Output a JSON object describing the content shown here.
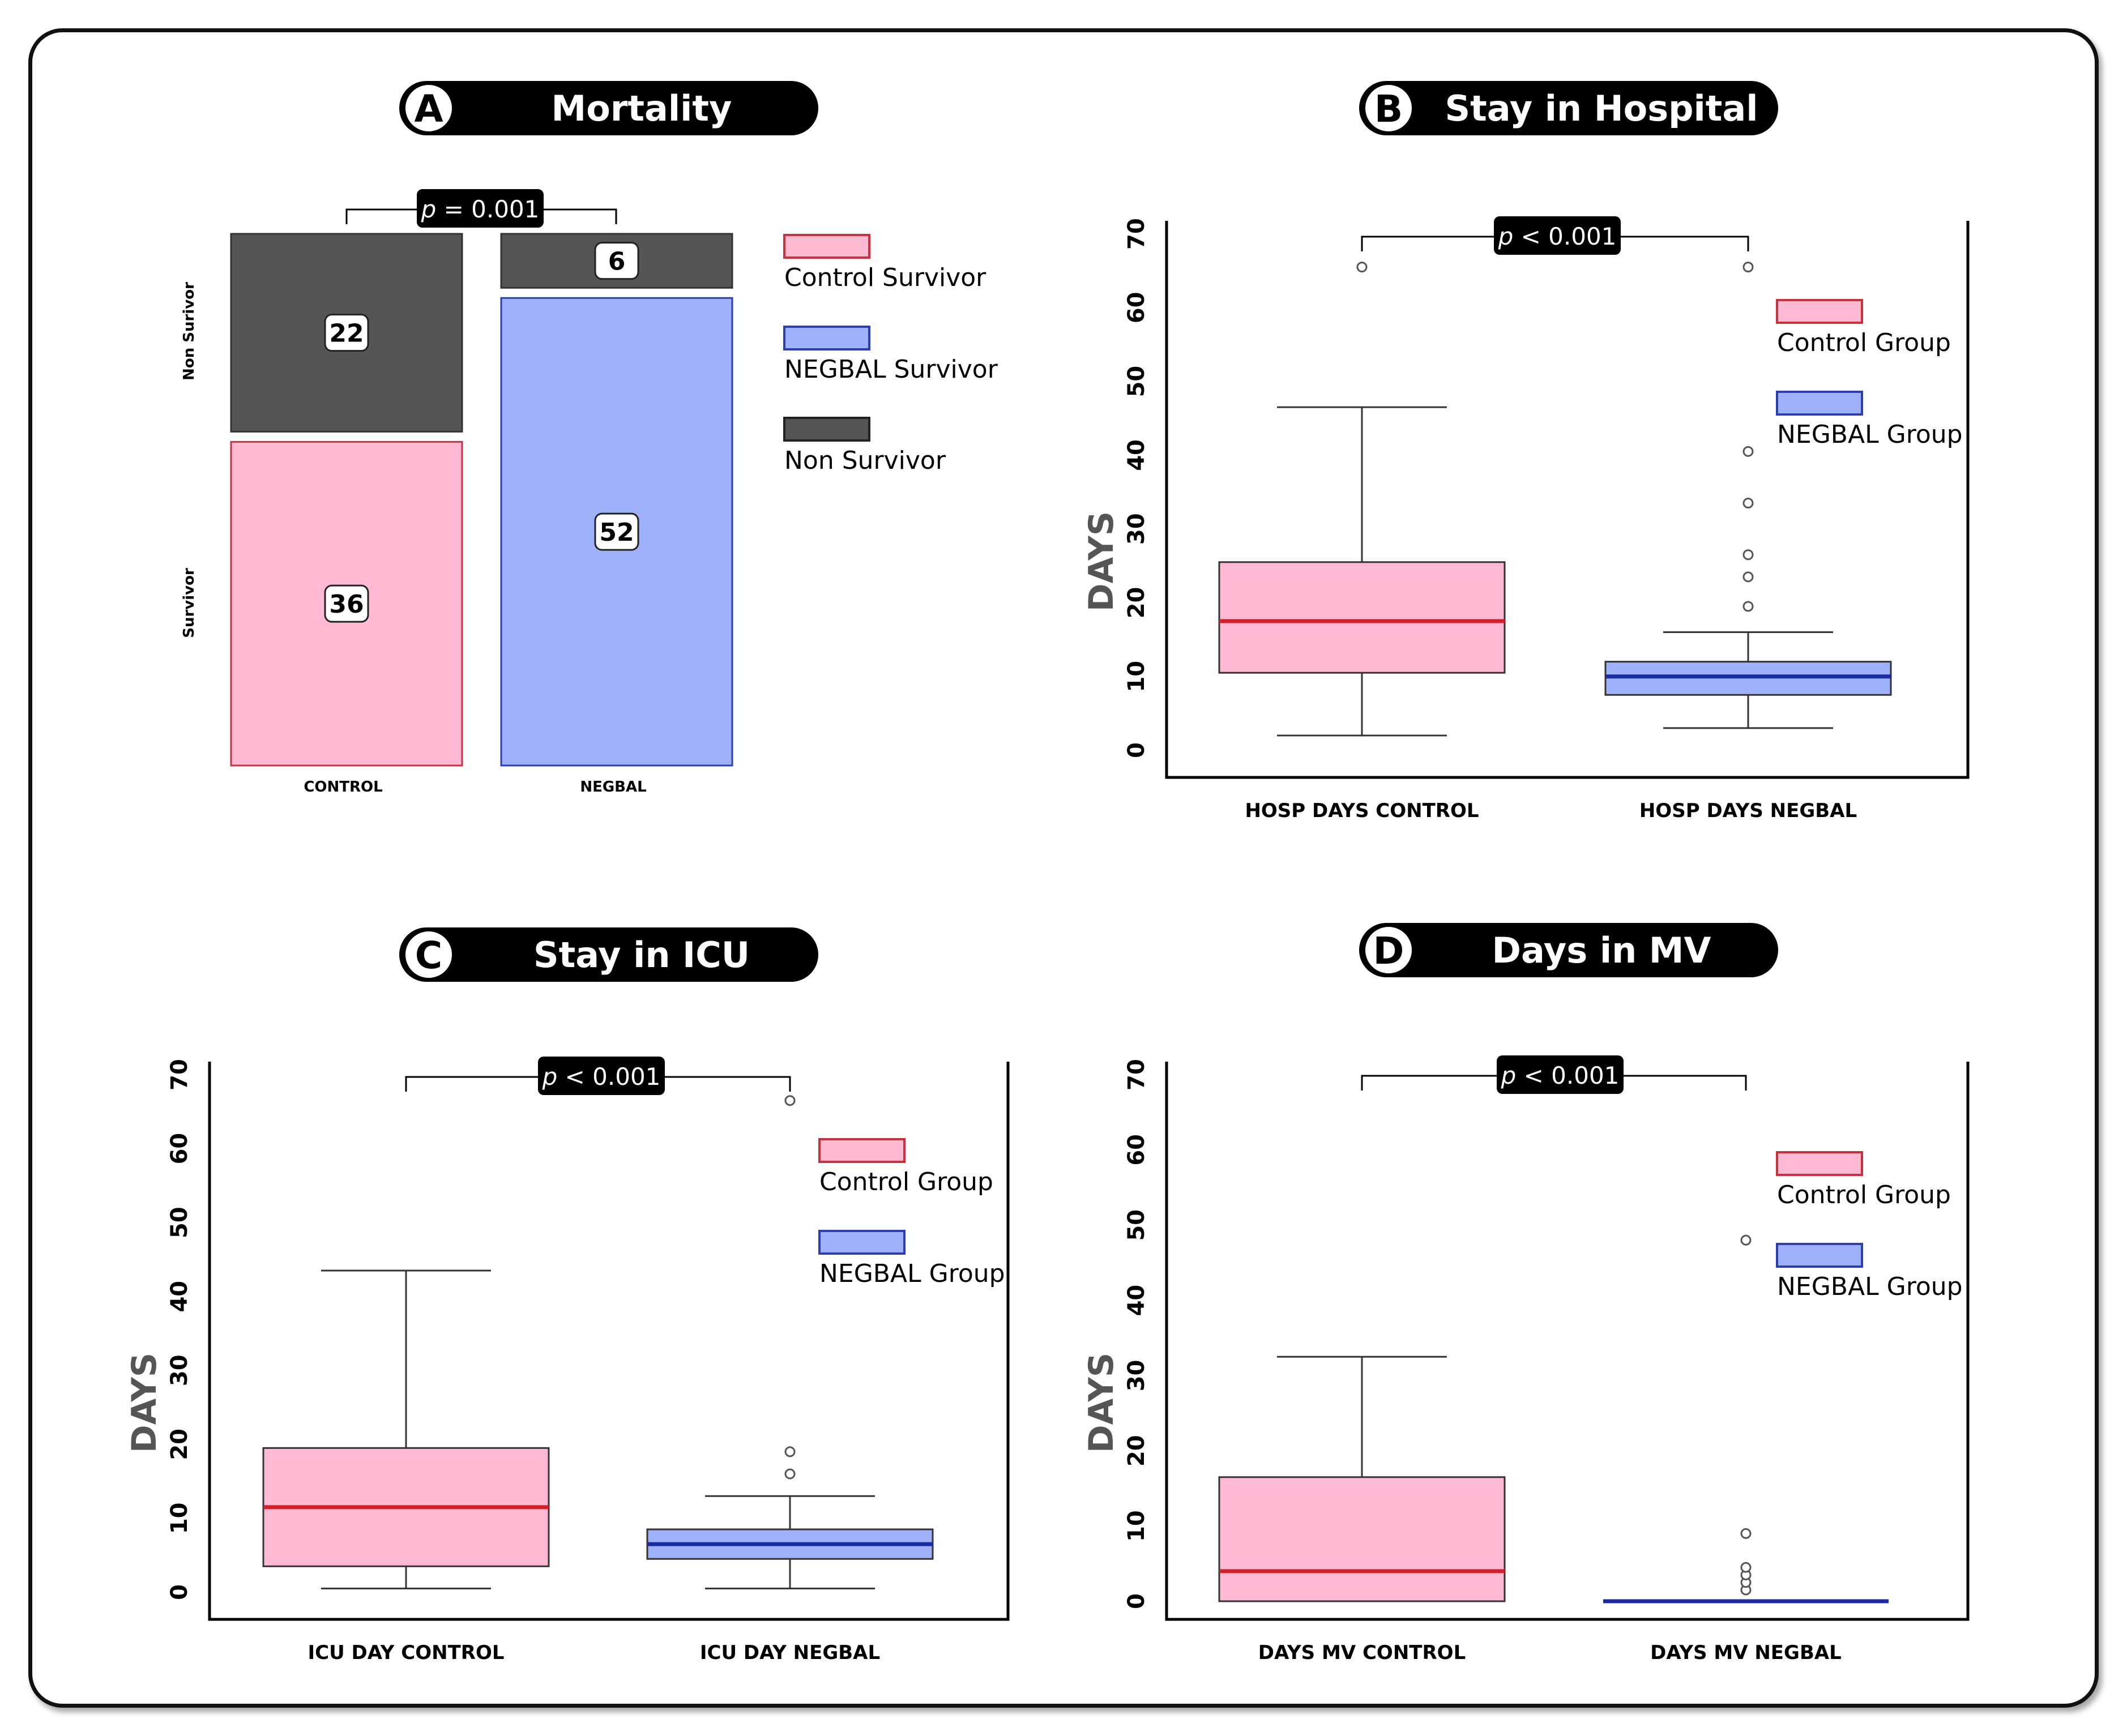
{
  "colors": {
    "control_fill": "#ffb9d3",
    "control_stroke": "#c8323c",
    "negbal_fill": "#9fb1fb",
    "negbal_stroke": "#2c3fb0",
    "nonsurv_fill": "#555555",
    "median_control": "#d0202a",
    "median_negbal": "#1a2da0",
    "dark": "#000000"
  },
  "chart_data": [
    {
      "panel": "A",
      "type": "bar",
      "subtype": "mosaic",
      "title": "Mortality",
      "categories": [
        "CONTROL",
        "NEGBAL"
      ],
      "ylabels": [
        "Non Surivor",
        "Survivor"
      ],
      "series": [
        {
          "name": "Non Survivor",
          "values": [
            22,
            6
          ]
        },
        {
          "name": "Survivor",
          "values": [
            36,
            52
          ]
        }
      ],
      "legend": [
        "Control Survivor",
        "NEGBAL Survivor",
        "Non Survivor"
      ],
      "p_text": "= 0.001"
    },
    {
      "panel": "B",
      "type": "box",
      "title": "Stay in Hospital",
      "ylabel": "DAYS",
      "ylim": [
        0,
        70
      ],
      "yticks": [
        "0",
        "10",
        "20",
        "30",
        "40",
        "50",
        "60",
        "70"
      ],
      "categories": [
        "HOSP DAYS CONTROL",
        "HOSP DAYS NEGBAL"
      ],
      "boxes": [
        {
          "whisker_low": 2,
          "q1": 10.5,
          "median": 17.5,
          "q3": 25.5,
          "whisker_high": 46.5,
          "outliers": [
            65.5
          ]
        },
        {
          "whisker_low": 3,
          "q1": 7.5,
          "median": 10,
          "q3": 12,
          "whisker_high": 16,
          "outliers": [
            19.5,
            23.5,
            26.5,
            33.5,
            40.5,
            65.5
          ]
        }
      ],
      "legend": [
        "Control Group",
        "NEGBAL Group"
      ],
      "p_text": "< 0.001"
    },
    {
      "panel": "C",
      "type": "box",
      "title": "Stay in ICU",
      "ylabel": "DAYS",
      "ylim": [
        0,
        70
      ],
      "yticks": [
        "0",
        "10",
        "20",
        "30",
        "40",
        "50",
        "60",
        "70"
      ],
      "categories": [
        "ICU DAY CONTROL",
        "ICU DAY NEGBAL"
      ],
      "boxes": [
        {
          "whisker_low": 0.5,
          "q1": 3.5,
          "median": 11.5,
          "q3": 19.5,
          "whisker_high": 43.5,
          "outliers": []
        },
        {
          "whisker_low": 0.5,
          "q1": 4.5,
          "median": 6.5,
          "q3": 8.5,
          "whisker_high": 13,
          "outliers": [
            16,
            19,
            66.5
          ]
        }
      ],
      "legend": [
        "Control Group",
        "NEGBAL Group"
      ],
      "p_text": "< 0.001"
    },
    {
      "panel": "D",
      "type": "box",
      "title": "Days in MV",
      "ylabel": "DAYS",
      "ylim": [
        0,
        70
      ],
      "yticks": [
        "0",
        "10",
        "20",
        "30",
        "40",
        "50",
        "60",
        "70"
      ],
      "categories": [
        "DAYS MV CONTROL",
        "DAYS MV NEGBAL"
      ],
      "boxes": [
        {
          "whisker_low": 0,
          "q1": 0,
          "median": 4,
          "q3": 16.5,
          "whisker_high": 32.5,
          "outliers": []
        },
        {
          "whisker_low": 0,
          "q1": 0,
          "median": 0,
          "q3": 0,
          "whisker_high": 0,
          "outliers": [
            1.5,
            2.5,
            3.5,
            4.5,
            9,
            48
          ]
        }
      ],
      "legend": [
        "Control Group",
        "NEGBAL Group"
      ],
      "p_text": "< 0.001"
    }
  ]
}
